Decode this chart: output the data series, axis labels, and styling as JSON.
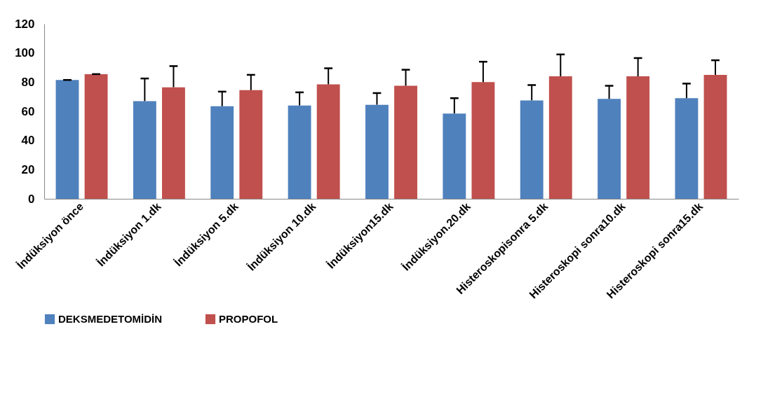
{
  "chart_data": {
    "type": "bar",
    "categories": [
      "İndüksiyon önce",
      "İndüksiyon 1.dk",
      "İndüksiyon 5.dk",
      "İndüksiyon 10.dk",
      "İndüksiyon15.dk",
      "İndüksiyon.20.dk",
      "Histeroskopisonra 5.dk",
      "Histeroskopi sonra10.dk",
      "Histeroskopi sonra15.dk"
    ],
    "series": [
      {
        "name": "DEKSMEDETOMİDİN",
        "color": "#4f81bd",
        "values": [
          81.5,
          67,
          63.5,
          64,
          64.5,
          58.5,
          67.5,
          68.5,
          69
        ],
        "errors": [
          [
            81.5,
            81.5
          ],
          [
            67,
            82.5
          ],
          [
            63.5,
            73.5
          ],
          [
            64,
            73
          ],
          [
            64.5,
            72.5
          ],
          [
            58.5,
            69
          ],
          [
            67.5,
            78
          ],
          [
            68.5,
            77.5
          ],
          [
            69,
            79
          ]
        ]
      },
      {
        "name": "PROPOFOL",
        "color": "#c0504d",
        "values": [
          85.5,
          76.5,
          74.5,
          78.5,
          77.5,
          80,
          84,
          84,
          85
        ],
        "errors": [
          [
            85.5,
            85.5
          ],
          [
            76.5,
            91
          ],
          [
            74.5,
            85
          ],
          [
            78.5,
            89.5
          ],
          [
            77.5,
            88.5
          ],
          [
            80,
            94
          ],
          [
            84,
            99
          ],
          [
            84,
            96.5
          ],
          [
            85,
            95
          ]
        ]
      }
    ],
    "ylim": [
      0,
      120
    ],
    "yticks": [
      0,
      20,
      40,
      60,
      80,
      100,
      120
    ],
    "grid": false,
    "legend": "bottom"
  }
}
